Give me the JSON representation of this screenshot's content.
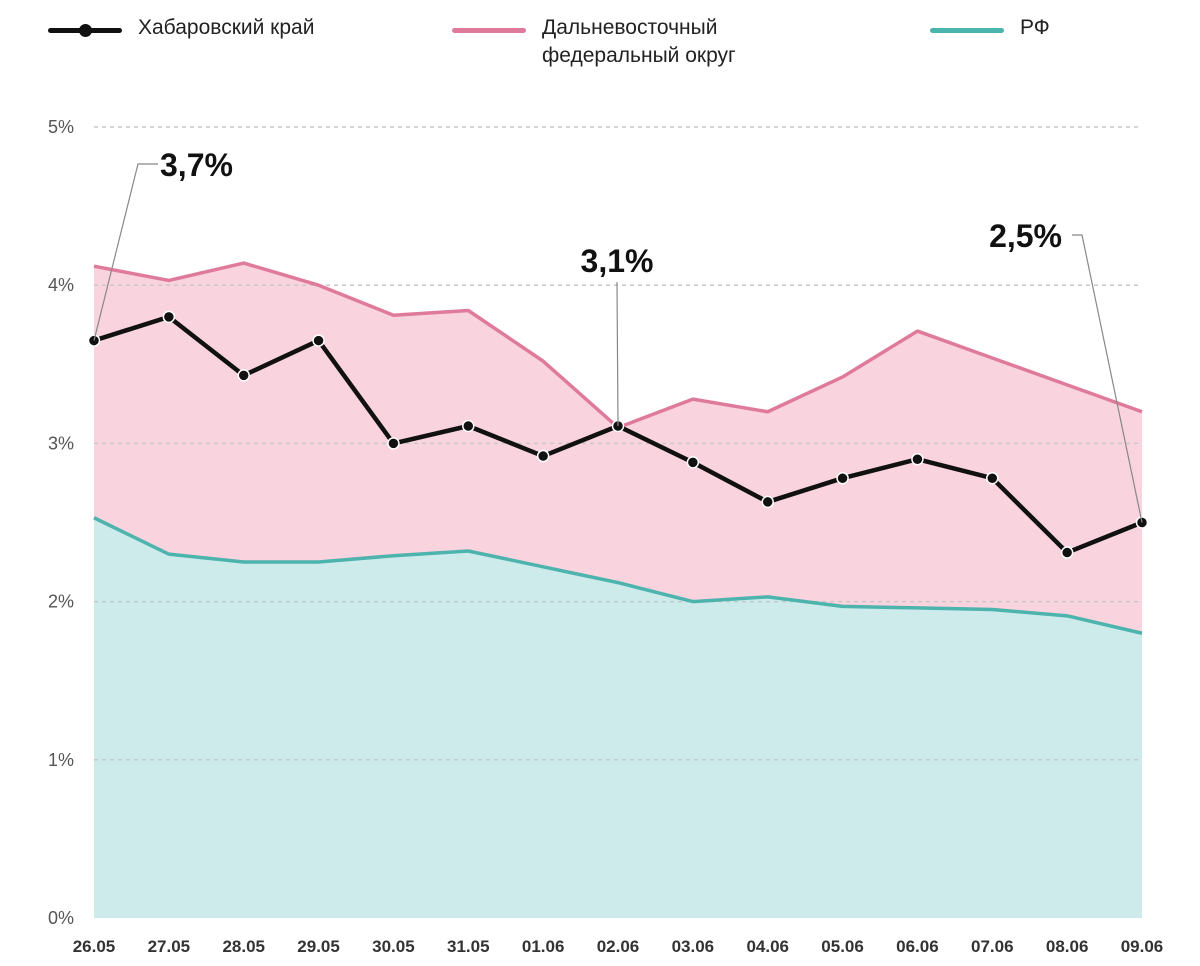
{
  "legend": [
    {
      "key": "khab",
      "label": "Хабаровский край",
      "color": "#111111",
      "marker": "dot"
    },
    {
      "key": "dfo",
      "label": "Дальневосточный федеральный округ",
      "color": "#e07a9b",
      "marker": "none"
    },
    {
      "key": "rf",
      "label": "РФ",
      "color": "#4db3ad",
      "marker": "none"
    }
  ],
  "chart_data": {
    "type": "line",
    "categories": [
      "26.05",
      "27.05",
      "28.05",
      "29.05",
      "30.05",
      "31.05",
      "01.06",
      "02.06",
      "03.06",
      "04.06",
      "05.06",
      "06.06",
      "07.06",
      "08.06",
      "09.06"
    ],
    "ylim": [
      0,
      5
    ],
    "yticks": [
      "0%",
      "1%",
      "2%",
      "3%",
      "4%",
      "5%"
    ],
    "grid": "dashed, y-major",
    "series": [
      {
        "name": "Хабаровский край",
        "role": "line",
        "color": "#111111",
        "values": [
          3.65,
          3.8,
          3.43,
          3.65,
          3.0,
          3.11,
          2.92,
          3.11,
          2.88,
          2.63,
          2.78,
          2.9,
          2.78,
          2.31,
          2.5
        ]
      },
      {
        "name": "Дальневосточный федеральный округ",
        "role": "area",
        "color": "#e07a9b",
        "fill": "#f9d3de",
        "values": [
          4.12,
          4.03,
          4.14,
          4.0,
          3.81,
          3.84,
          3.52,
          3.1,
          3.28,
          3.2,
          3.42,
          3.71,
          3.54,
          3.37,
          3.2
        ]
      },
      {
        "name": "РФ",
        "role": "area",
        "color": "#4db3ad",
        "fill": "#cdebea",
        "values": [
          2.53,
          2.3,
          2.25,
          2.25,
          2.29,
          2.32,
          2.22,
          2.12,
          2.0,
          2.03,
          1.97,
          1.96,
          1.95,
          1.91,
          1.8
        ]
      }
    ],
    "annotations": [
      {
        "text": "3,7%",
        "index": 0
      },
      {
        "text": "3,1%",
        "index": 7
      },
      {
        "text": "2,5%",
        "index": 14
      }
    ]
  }
}
